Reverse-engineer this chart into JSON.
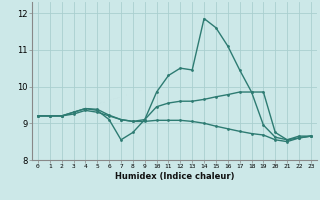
{
  "xlabel": "Humidex (Indice chaleur)",
  "bg_color": "#cce8e8",
  "line_color": "#2d7b72",
  "grid_color": "#aacfcf",
  "xlim": [
    -0.5,
    23.5
  ],
  "ylim": [
    8,
    12.3
  ],
  "yticks": [
    8,
    9,
    10,
    11,
    12
  ],
  "xticks": [
    0,
    1,
    2,
    3,
    4,
    5,
    6,
    7,
    8,
    9,
    10,
    11,
    12,
    13,
    14,
    15,
    16,
    17,
    18,
    19,
    20,
    21,
    22,
    23
  ],
  "line1": [
    9.2,
    9.2,
    9.2,
    9.3,
    9.4,
    9.35,
    9.1,
    8.55,
    8.75,
    9.1,
    9.85,
    10.3,
    10.5,
    10.45,
    11.85,
    11.6,
    11.1,
    10.45,
    9.85,
    9.85,
    8.75,
    8.55,
    8.65,
    8.65
  ],
  "line2": [
    9.2,
    9.2,
    9.2,
    9.3,
    9.4,
    9.38,
    9.22,
    9.1,
    9.05,
    9.1,
    9.45,
    9.55,
    9.6,
    9.6,
    9.65,
    9.72,
    9.78,
    9.85,
    9.85,
    8.95,
    8.62,
    8.55,
    8.6,
    8.65
  ],
  "line3": [
    9.2,
    9.2,
    9.2,
    9.25,
    9.35,
    9.3,
    9.2,
    9.1,
    9.05,
    9.05,
    9.08,
    9.08,
    9.08,
    9.05,
    9.0,
    8.92,
    8.85,
    8.78,
    8.72,
    8.68,
    8.55,
    8.5,
    8.6,
    8.65
  ]
}
